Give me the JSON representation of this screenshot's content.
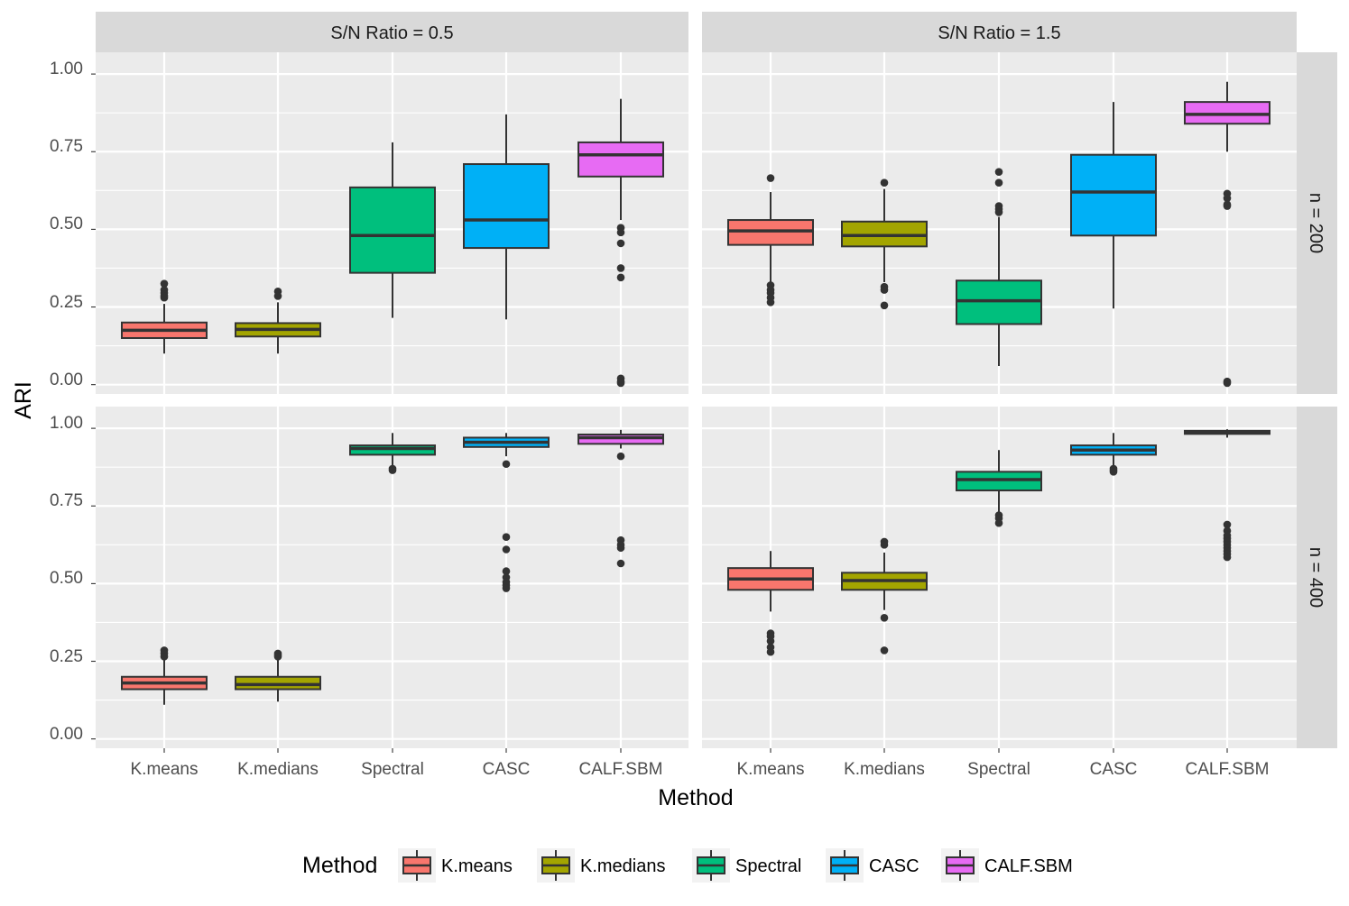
{
  "chart_data": {
    "type": "boxplot",
    "xlabel": "Method",
    "ylabel": "ARI",
    "ylim": [
      -0.03,
      1.07
    ],
    "yticks": [
      "0.00",
      "0.25",
      "0.50",
      "0.75",
      "1.00"
    ],
    "ytick_values": [
      0,
      0.25,
      0.5,
      0.75,
      1.0
    ],
    "categories": [
      "K.means",
      "K.medians",
      "Spectral",
      "CASC",
      "CALF.SBM"
    ],
    "colors": [
      "#F8766D",
      "#A3A500",
      "#00BF7D",
      "#00B0F6",
      "#E76BF3"
    ],
    "col_strips": [
      "S/N Ratio = 0.5",
      "S/N Ratio = 1.5"
    ],
    "row_strips": [
      "n = 200",
      "n = 400"
    ],
    "legend": {
      "title": "Method",
      "position": "bottom",
      "items": [
        "K.means",
        "K.medians",
        "Spectral",
        "CASC",
        "CALF.SBM"
      ]
    },
    "grid": true,
    "panels": [
      {
        "col": 0,
        "row": 0,
        "boxes": [
          {
            "method": "K.means",
            "lower_whisker": 0.1,
            "q1": 0.15,
            "median": 0.175,
            "q3": 0.2,
            "upper_whisker": 0.26,
            "outliers": [
              0.325,
              0.305,
              0.295,
              0.285,
              0.28
            ]
          },
          {
            "method": "K.medians",
            "lower_whisker": 0.1,
            "q1": 0.155,
            "median": 0.178,
            "q3": 0.198,
            "upper_whisker": 0.265,
            "outliers": [
              0.3,
              0.285
            ]
          },
          {
            "method": "Spectral",
            "lower_whisker": 0.215,
            "q1": 0.36,
            "median": 0.48,
            "q3": 0.635,
            "upper_whisker": 0.78,
            "outliers": []
          },
          {
            "method": "CASC",
            "lower_whisker": 0.21,
            "q1": 0.44,
            "median": 0.53,
            "q3": 0.71,
            "upper_whisker": 0.87,
            "outliers": []
          },
          {
            "method": "CALF.SBM",
            "lower_whisker": 0.53,
            "q1": 0.67,
            "median": 0.74,
            "q3": 0.78,
            "upper_whisker": 0.92,
            "outliers": [
              0.505,
              0.49,
              0.455,
              0.375,
              0.345,
              0.02,
              0.01,
              0.005
            ]
          }
        ]
      },
      {
        "col": 1,
        "row": 0,
        "boxes": [
          {
            "method": "K.means",
            "lower_whisker": 0.33,
            "q1": 0.45,
            "median": 0.495,
            "q3": 0.53,
            "upper_whisker": 0.62,
            "outliers": [
              0.665,
              0.32,
              0.305,
              0.295,
              0.28,
              0.265
            ]
          },
          {
            "method": "K.medians",
            "lower_whisker": 0.33,
            "q1": 0.445,
            "median": 0.48,
            "q3": 0.525,
            "upper_whisker": 0.63,
            "outliers": [
              0.65,
              0.315,
              0.305,
              0.255
            ]
          },
          {
            "method": "Spectral",
            "lower_whisker": 0.06,
            "q1": 0.195,
            "median": 0.27,
            "q3": 0.335,
            "upper_whisker": 0.54,
            "outliers": [
              0.685,
              0.65,
              0.575,
              0.565,
              0.555
            ]
          },
          {
            "method": "CASC",
            "lower_whisker": 0.245,
            "q1": 0.48,
            "median": 0.62,
            "q3": 0.74,
            "upper_whisker": 0.91,
            "outliers": []
          },
          {
            "method": "CALF.SBM",
            "lower_whisker": 0.75,
            "q1": 0.84,
            "median": 0.87,
            "q3": 0.91,
            "upper_whisker": 0.975,
            "outliers": [
              0.615,
              0.6,
              0.58,
              0.575,
              0.01,
              0.005
            ]
          }
        ]
      },
      {
        "col": 0,
        "row": 1,
        "boxes": [
          {
            "method": "K.means",
            "lower_whisker": 0.11,
            "q1": 0.16,
            "median": 0.18,
            "q3": 0.2,
            "upper_whisker": 0.26,
            "outliers": [
              0.285,
              0.275,
              0.265
            ]
          },
          {
            "method": "K.medians",
            "lower_whisker": 0.12,
            "q1": 0.16,
            "median": 0.175,
            "q3": 0.2,
            "upper_whisker": 0.255,
            "outliers": [
              0.275,
              0.27,
              0.265
            ]
          },
          {
            "method": "Spectral",
            "lower_whisker": 0.88,
            "q1": 0.915,
            "median": 0.935,
            "q3": 0.945,
            "upper_whisker": 0.985,
            "outliers": [
              0.87,
              0.865
            ]
          },
          {
            "method": "CASC",
            "lower_whisker": 0.91,
            "q1": 0.94,
            "median": 0.955,
            "q3": 0.97,
            "upper_whisker": 0.985,
            "outliers": [
              0.885,
              0.65,
              0.61,
              0.54,
              0.52,
              0.505,
              0.495,
              0.485
            ]
          },
          {
            "method": "CALF.SBM",
            "lower_whisker": 0.935,
            "q1": 0.95,
            "median": 0.97,
            "q3": 0.98,
            "upper_whisker": 0.995,
            "outliers": [
              0.91,
              0.64,
              0.625,
              0.615,
              0.565
            ]
          }
        ]
      },
      {
        "col": 1,
        "row": 1,
        "boxes": [
          {
            "method": "K.means",
            "lower_whisker": 0.41,
            "q1": 0.48,
            "median": 0.515,
            "q3": 0.55,
            "upper_whisker": 0.605,
            "outliers": [
              0.34,
              0.33,
              0.315,
              0.295,
              0.28
            ]
          },
          {
            "method": "K.medians",
            "lower_whisker": 0.415,
            "q1": 0.48,
            "median": 0.51,
            "q3": 0.535,
            "upper_whisker": 0.6,
            "outliers": [
              0.635,
              0.625,
              0.39,
              0.285
            ]
          },
          {
            "method": "Spectral",
            "lower_whisker": 0.73,
            "q1": 0.8,
            "median": 0.835,
            "q3": 0.86,
            "upper_whisker": 0.93,
            "outliers": [
              0.72,
              0.71,
              0.695
            ]
          },
          {
            "method": "CASC",
            "lower_whisker": 0.88,
            "q1": 0.915,
            "median": 0.93,
            "q3": 0.945,
            "upper_whisker": 0.985,
            "outliers": [
              0.87,
              0.865,
              0.86
            ]
          },
          {
            "method": "CALF.SBM",
            "lower_whisker": 0.97,
            "q1": 0.982,
            "median": 0.988,
            "q3": 0.992,
            "upper_whisker": 0.997,
            "outliers": [
              0.69,
              0.67,
              0.655,
              0.645,
              0.635,
              0.625,
              0.615,
              0.605,
              0.595,
              0.585
            ]
          }
        ]
      }
    ]
  }
}
